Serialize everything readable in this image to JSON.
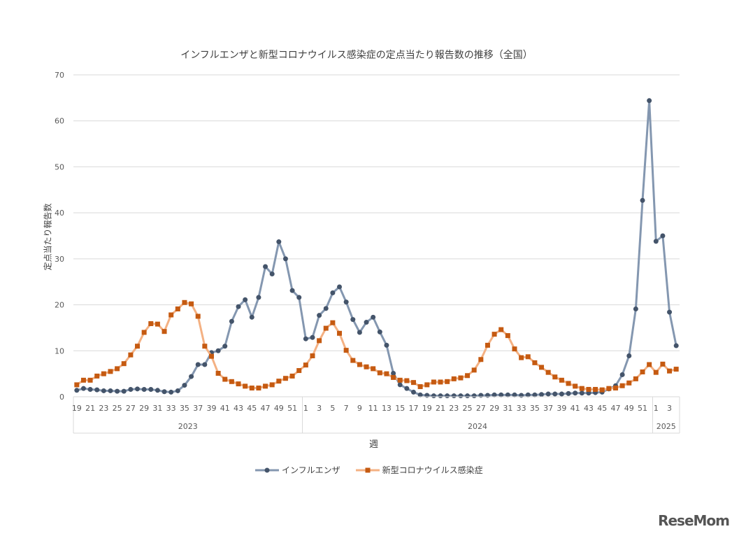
{
  "chart_data": {
    "type": "line",
    "title": "インフルエンザと新型コロナウイルス感染症の定点当たり報告数の推移（全国）",
    "xlabel": "週",
    "ylabel": "定点当たり報告数",
    "ylim": [
      0,
      70
    ],
    "yticks": [
      0,
      10,
      20,
      30,
      40,
      50,
      60,
      70
    ],
    "grid": true,
    "legend": "bottom",
    "year_groups": [
      {
        "year": "2023",
        "weeks": [
          19,
          20,
          21,
          22,
          23,
          24,
          25,
          26,
          27,
          28,
          29,
          30,
          31,
          32,
          33,
          34,
          35,
          36,
          37,
          38,
          39,
          40,
          41,
          42,
          43,
          44,
          45,
          46,
          47,
          48,
          49,
          50,
          51,
          52
        ]
      },
      {
        "year": "2024",
        "weeks": [
          1,
          2,
          3,
          4,
          5,
          6,
          7,
          8,
          9,
          10,
          11,
          12,
          13,
          14,
          15,
          16,
          17,
          18,
          19,
          20,
          21,
          22,
          23,
          24,
          25,
          26,
          27,
          28,
          29,
          30,
          31,
          32,
          33,
          34,
          35,
          36,
          37,
          38,
          39,
          40,
          41,
          42,
          43,
          44,
          45,
          46,
          47,
          48,
          49,
          50,
          51,
          52
        ]
      },
      {
        "year": "2025",
        "weeks": [
          1,
          2,
          3,
          4
        ]
      }
    ],
    "series": [
      {
        "name": "インフルエンザ",
        "color": "#8497b0",
        "marker_color": "#44546a",
        "marker": "circle",
        "values": [
          1.4,
          1.8,
          1.6,
          1.5,
          1.3,
          1.3,
          1.2,
          1.2,
          1.6,
          1.7,
          1.6,
          1.6,
          1.4,
          1.1,
          1.0,
          1.3,
          2.5,
          4.4,
          7.0,
          7.0,
          9.6,
          10.0,
          11.0,
          16.4,
          19.6,
          21.1,
          17.3,
          21.6,
          28.3,
          26.7,
          33.7,
          30.0,
          23.1,
          21.6,
          12.6,
          12.9,
          17.7,
          19.2,
          22.6,
          23.9,
          20.6,
          16.8,
          14.0,
          16.2,
          17.3,
          14.1,
          11.2,
          5.1,
          2.6,
          1.8,
          1.0,
          0.4,
          0.3,
          0.2,
          0.2,
          0.2,
          0.2,
          0.2,
          0.2,
          0.2,
          0.3,
          0.3,
          0.4,
          0.4,
          0.4,
          0.4,
          0.3,
          0.4,
          0.4,
          0.5,
          0.6,
          0.6,
          0.6,
          0.7,
          0.8,
          0.8,
          0.8,
          0.9,
          1.0,
          1.7,
          2.4,
          4.8,
          8.9,
          19.1,
          42.7,
          64.4,
          33.8,
          35.0,
          18.4,
          11.1
        ]
      },
      {
        "name": "新型コロナウイルス感染症",
        "color": "#f4b183",
        "marker_color": "#c55a11",
        "marker": "square",
        "values": [
          2.6,
          3.6,
          3.6,
          4.5,
          5.0,
          5.5,
          6.1,
          7.2,
          9.1,
          11.0,
          14.0,
          15.9,
          15.8,
          14.2,
          17.8,
          19.1,
          20.5,
          20.2,
          17.5,
          11.0,
          8.8,
          5.1,
          3.8,
          3.3,
          2.8,
          2.3,
          1.9,
          1.9,
          2.3,
          2.6,
          3.4,
          4.0,
          4.5,
          5.7,
          6.9,
          8.9,
          12.2,
          14.9,
          16.1,
          13.8,
          10.1,
          7.9,
          7.0,
          6.5,
          6.1,
          5.2,
          5.0,
          4.2,
          3.6,
          3.5,
          3.1,
          2.2,
          2.6,
          3.2,
          3.2,
          3.3,
          3.9,
          4.1,
          4.6,
          5.8,
          8.1,
          11.2,
          13.6,
          14.6,
          13.3,
          10.4,
          8.5,
          8.7,
          7.4,
          6.4,
          5.3,
          4.3,
          3.6,
          2.9,
          2.3,
          1.8,
          1.6,
          1.6,
          1.5,
          1.8,
          1.9,
          2.4,
          3.0,
          3.9,
          5.4,
          7.0,
          5.3,
          7.1,
          5.6,
          6.0
        ]
      }
    ]
  },
  "logo": "ReseMom"
}
